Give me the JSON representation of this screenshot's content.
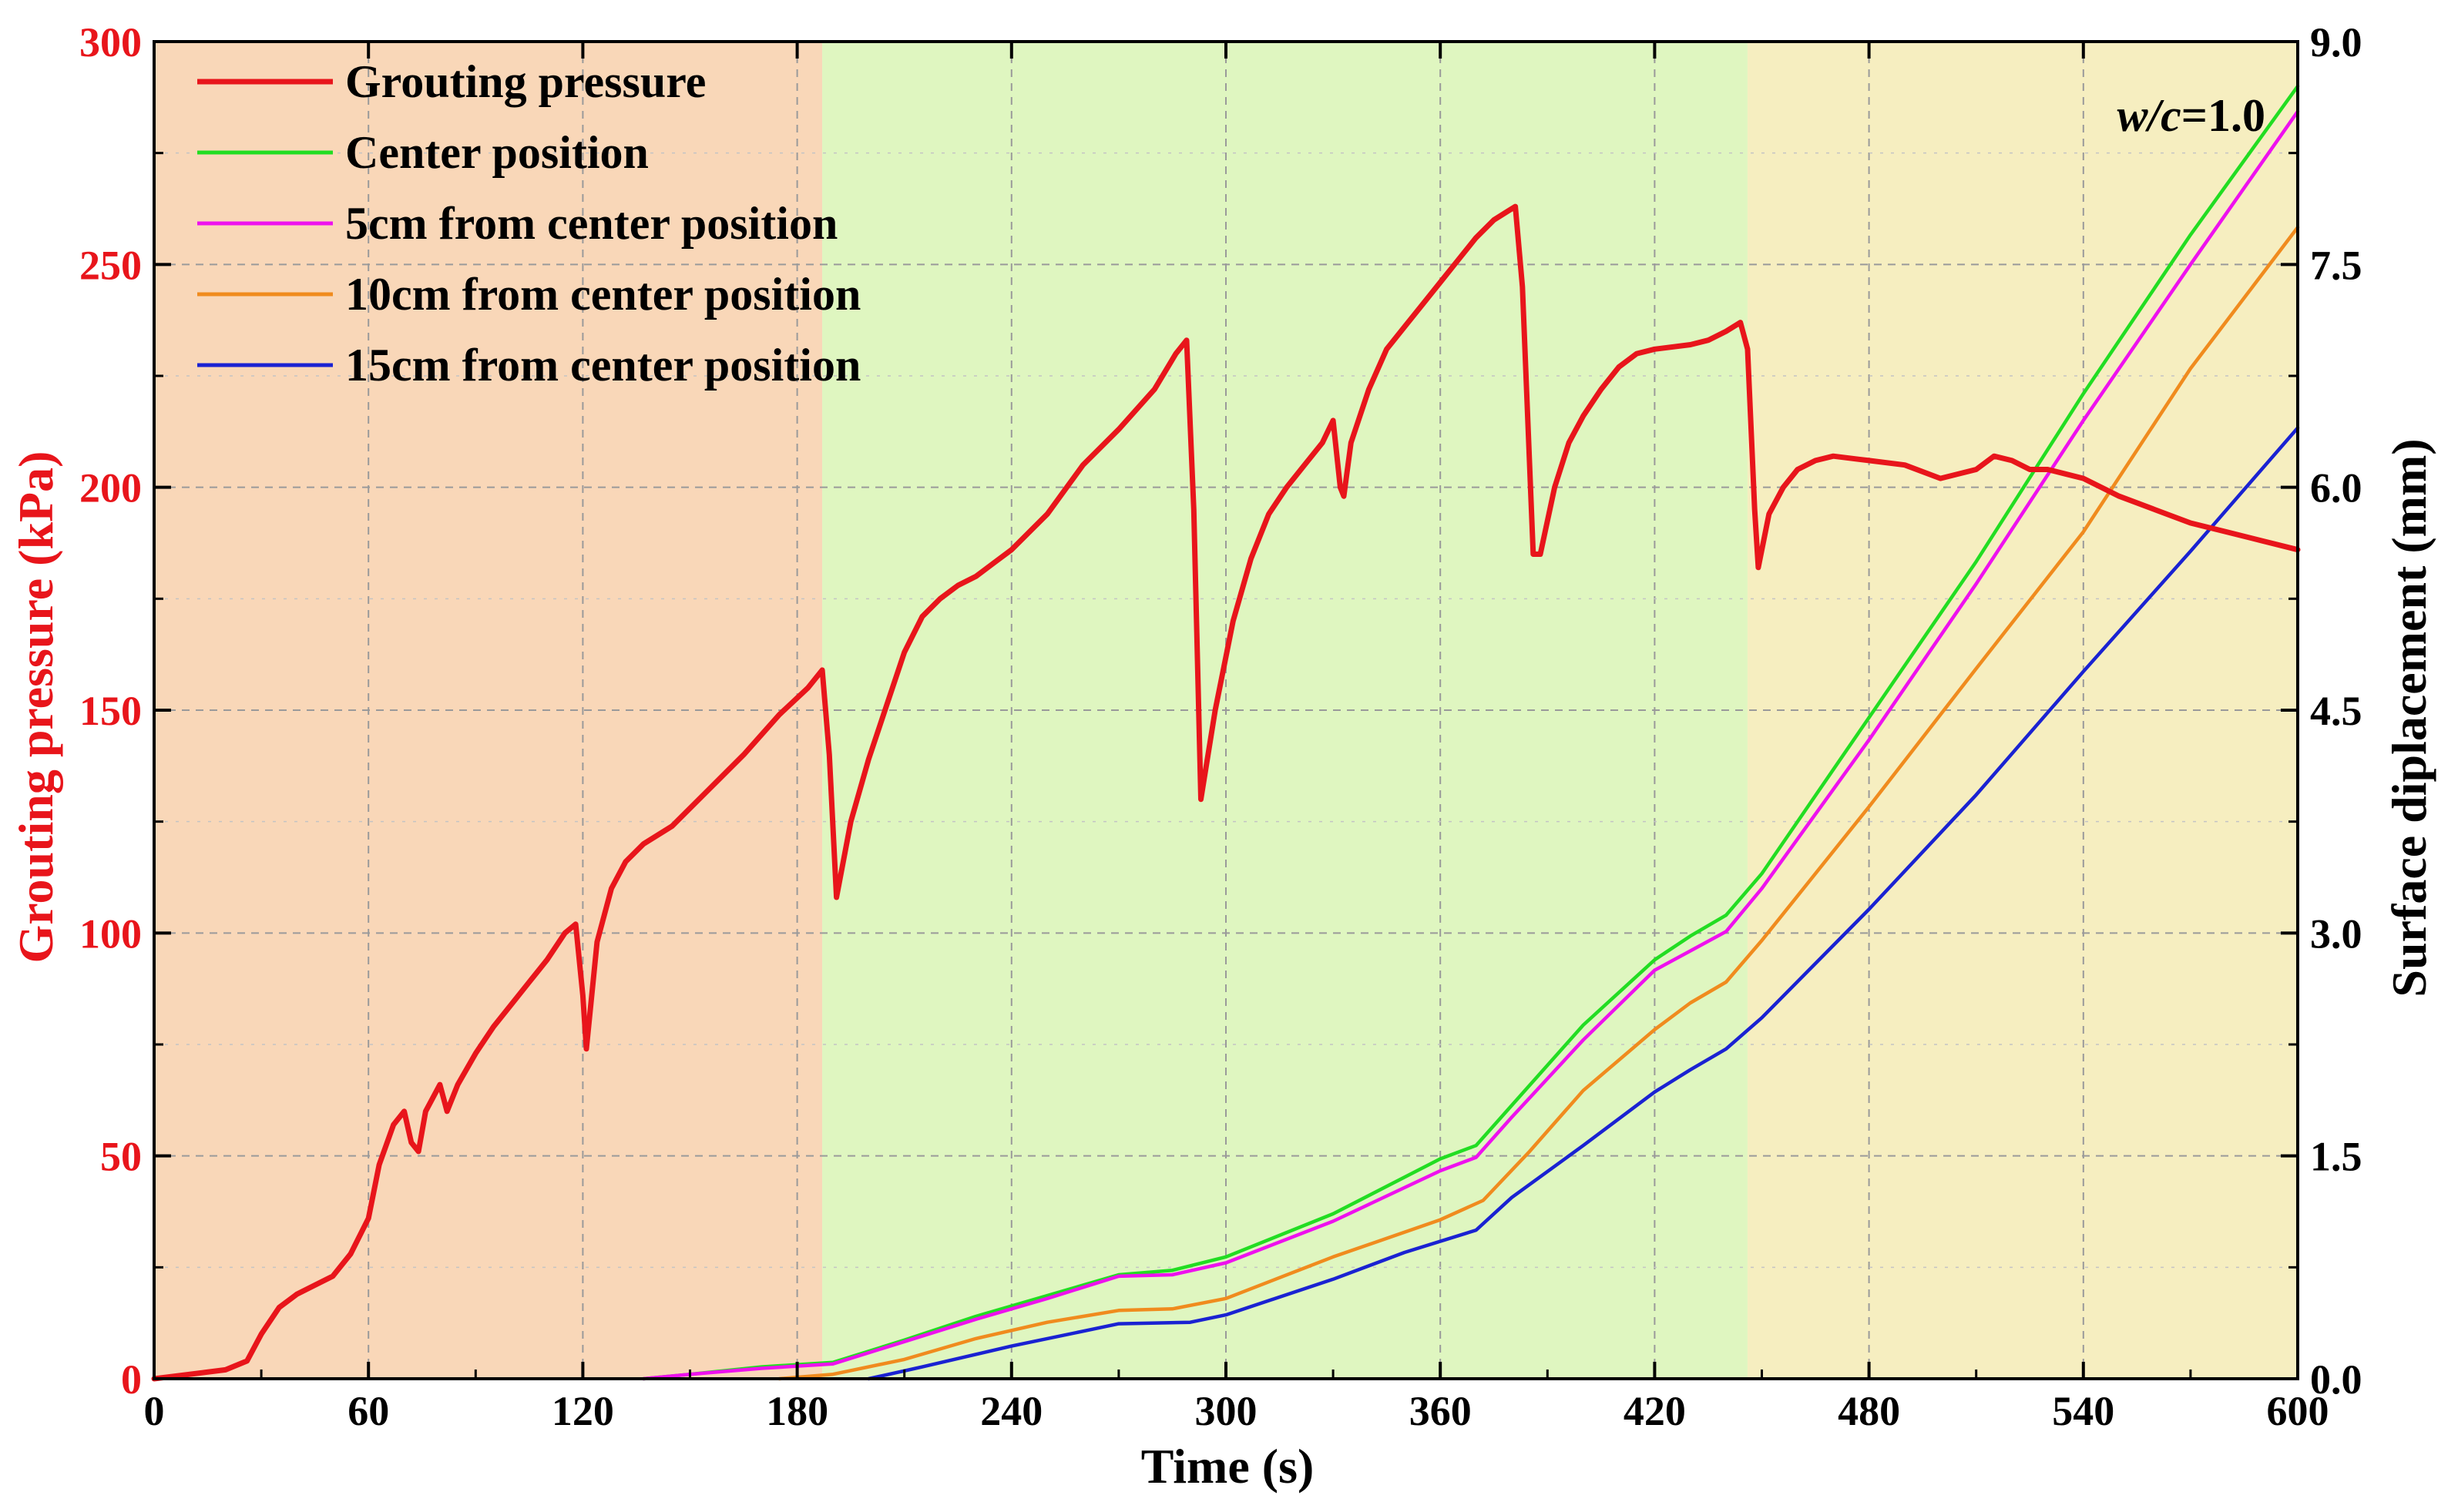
{
  "colors": {
    "pressure": "#e8151b",
    "center": "#22dd22",
    "cm5": "#ee11ee",
    "cm10": "#f08b1e",
    "cm15": "#1a22d2",
    "stage1_bg": "#f9d7b8",
    "stage2_bg": "#dff6c0",
    "stage3_bg": "#f6eec0",
    "grid": "#9a9a9a",
    "axis": "#000000"
  },
  "chart_data": {
    "type": "line",
    "title": "",
    "annotation": {
      "italic_part": "w/c",
      "rest": "=1.0"
    },
    "xlabel": "Time (s)",
    "ylabel_left": "Grouting pressure (kPa)",
    "ylabel_right": "Surface diplacement (mm)",
    "xlim": [
      0,
      600
    ],
    "ylim_left": [
      0,
      300
    ],
    "ylim_right": [
      0,
      9.0
    ],
    "x_ticks": [
      "0",
      "60",
      "120",
      "180",
      "240",
      "300",
      "360",
      "420",
      "480",
      "540",
      "600"
    ],
    "y_left_ticks": [
      "0",
      "50",
      "100",
      "150",
      "200",
      "250",
      "300"
    ],
    "y_right_ticks": [
      "0.0",
      "1.5",
      "3.0",
      "4.5",
      "6.0",
      "7.5",
      "9.0"
    ],
    "grid": true,
    "legend_position": "top-left",
    "stages": [
      {
        "x_start": 0,
        "x_end": 187,
        "color_key": "stage1_bg"
      },
      {
        "x_start": 187,
        "x_end": 446,
        "color_key": "stage2_bg"
      },
      {
        "x_start": 446,
        "x_end": 600,
        "color_key": "stage3_bg"
      }
    ],
    "series": [
      {
        "name": "Grouting pressure",
        "axis": "left",
        "color_key": "pressure",
        "points": [
          [
            0,
            0
          ],
          [
            10,
            1
          ],
          [
            20,
            2
          ],
          [
            26,
            4
          ],
          [
            30,
            10
          ],
          [
            35,
            16
          ],
          [
            40,
            19
          ],
          [
            45,
            21
          ],
          [
            50,
            23
          ],
          [
            55,
            28
          ],
          [
            60,
            36
          ],
          [
            63,
            48
          ],
          [
            67,
            57
          ],
          [
            70,
            60
          ],
          [
            72,
            53
          ],
          [
            74,
            51
          ],
          [
            76,
            60
          ],
          [
            80,
            66
          ],
          [
            82,
            60
          ],
          [
            85,
            66
          ],
          [
            90,
            73
          ],
          [
            95,
            79
          ],
          [
            100,
            84
          ],
          [
            105,
            89
          ],
          [
            110,
            94
          ],
          [
            115,
            100
          ],
          [
            118,
            102
          ],
          [
            120,
            86
          ],
          [
            121,
            74
          ],
          [
            124,
            98
          ],
          [
            128,
            110
          ],
          [
            132,
            116
          ],
          [
            137,
            120
          ],
          [
            145,
            124
          ],
          [
            155,
            132
          ],
          [
            165,
            140
          ],
          [
            175,
            149
          ],
          [
            183,
            155
          ],
          [
            187,
            159
          ],
          [
            189,
            140
          ],
          [
            191,
            108
          ],
          [
            195,
            125
          ],
          [
            200,
            139
          ],
          [
            205,
            151
          ],
          [
            210,
            163
          ],
          [
            215,
            171
          ],
          [
            220,
            175
          ],
          [
            225,
            178
          ],
          [
            230,
            180
          ],
          [
            235,
            183
          ],
          [
            240,
            186
          ],
          [
            250,
            194
          ],
          [
            260,
            205
          ],
          [
            270,
            213
          ],
          [
            280,
            222
          ],
          [
            286,
            230
          ],
          [
            289,
            233
          ],
          [
            291,
            195
          ],
          [
            293,
            130
          ],
          [
            297,
            150
          ],
          [
            302,
            170
          ],
          [
            307,
            184
          ],
          [
            312,
            194
          ],
          [
            317,
            200
          ],
          [
            322,
            205
          ],
          [
            327,
            210
          ],
          [
            330,
            215
          ],
          [
            332,
            200
          ],
          [
            333,
            198
          ],
          [
            335,
            210
          ],
          [
            340,
            222
          ],
          [
            345,
            231
          ],
          [
            350,
            236
          ],
          [
            355,
            241
          ],
          [
            360,
            246
          ],
          [
            365,
            251
          ],
          [
            370,
            256
          ],
          [
            375,
            260
          ],
          [
            379,
            262
          ],
          [
            381,
            263
          ],
          [
            383,
            245
          ],
          [
            386,
            185
          ],
          [
            388,
            185
          ],
          [
            392,
            200
          ],
          [
            396,
            210
          ],
          [
            400,
            216
          ],
          [
            405,
            222
          ],
          [
            410,
            227
          ],
          [
            415,
            230
          ],
          [
            420,
            231
          ],
          [
            430,
            232
          ],
          [
            435,
            233
          ],
          [
            440,
            235
          ],
          [
            444,
            237
          ],
          [
            446,
            231
          ],
          [
            448,
            195
          ],
          [
            449,
            182
          ],
          [
            452,
            194
          ],
          [
            456,
            200
          ],
          [
            460,
            204
          ],
          [
            465,
            206
          ],
          [
            470,
            207
          ],
          [
            480,
            206
          ],
          [
            490,
            205
          ],
          [
            500,
            202
          ],
          [
            510,
            204
          ],
          [
            515,
            207
          ],
          [
            520,
            206
          ],
          [
            525,
            204
          ],
          [
            530,
            204
          ],
          [
            535,
            203
          ],
          [
            540,
            202
          ],
          [
            550,
            198
          ],
          [
            560,
            195
          ],
          [
            570,
            192
          ],
          [
            580,
            190
          ],
          [
            590,
            188
          ],
          [
            600,
            186
          ]
        ]
      },
      {
        "name": "Center position",
        "axis": "right",
        "color_key": "center",
        "points": [
          [
            137,
            0
          ],
          [
            150,
            0.03
          ],
          [
            170,
            0.08
          ],
          [
            190,
            0.11
          ],
          [
            210,
            0.26
          ],
          [
            230,
            0.42
          ],
          [
            250,
            0.56
          ],
          [
            270,
            0.7
          ],
          [
            285,
            0.73
          ],
          [
            300,
            0.82
          ],
          [
            330,
            1.11
          ],
          [
            360,
            1.48
          ],
          [
            370,
            1.57
          ],
          [
            380,
            1.84
          ],
          [
            400,
            2.38
          ],
          [
            420,
            2.82
          ],
          [
            430,
            2.98
          ],
          [
            440,
            3.12
          ],
          [
            450,
            3.4
          ],
          [
            480,
            4.45
          ],
          [
            510,
            5.5
          ],
          [
            540,
            6.63
          ],
          [
            570,
            7.7
          ],
          [
            600,
            8.7
          ]
        ]
      },
      {
        "name": "5cm from center position",
        "axis": "right",
        "color_key": "cm5",
        "points": [
          [
            137,
            0
          ],
          [
            150,
            0.03
          ],
          [
            170,
            0.07
          ],
          [
            190,
            0.1
          ],
          [
            210,
            0.25
          ],
          [
            230,
            0.4
          ],
          [
            250,
            0.54
          ],
          [
            270,
            0.69
          ],
          [
            285,
            0.7
          ],
          [
            300,
            0.78
          ],
          [
            330,
            1.06
          ],
          [
            360,
            1.4
          ],
          [
            370,
            1.49
          ],
          [
            380,
            1.76
          ],
          [
            400,
            2.28
          ],
          [
            420,
            2.75
          ],
          [
            430,
            2.88
          ],
          [
            440,
            3.01
          ],
          [
            450,
            3.3
          ],
          [
            480,
            4.3
          ],
          [
            510,
            5.35
          ],
          [
            540,
            6.45
          ],
          [
            570,
            7.5
          ],
          [
            600,
            8.53
          ]
        ]
      },
      {
        "name": "10cm from center position",
        "axis": "right",
        "color_key": "cm10",
        "points": [
          [
            175,
            0
          ],
          [
            190,
            0.03
          ],
          [
            210,
            0.13
          ],
          [
            230,
            0.27
          ],
          [
            250,
            0.38
          ],
          [
            270,
            0.46
          ],
          [
            285,
            0.47
          ],
          [
            300,
            0.54
          ],
          [
            330,
            0.82
          ],
          [
            360,
            1.07
          ],
          [
            372,
            1.2
          ],
          [
            385,
            1.53
          ],
          [
            400,
            1.94
          ],
          [
            420,
            2.35
          ],
          [
            430,
            2.53
          ],
          [
            440,
            2.67
          ],
          [
            450,
            2.95
          ],
          [
            480,
            3.85
          ],
          [
            510,
            4.78
          ],
          [
            540,
            5.7
          ],
          [
            570,
            6.8
          ],
          [
            600,
            7.75
          ]
        ]
      },
      {
        "name": "15cm from center position",
        "axis": "right",
        "color_key": "cm15",
        "points": [
          [
            200,
            0
          ],
          [
            215,
            0.08
          ],
          [
            240,
            0.22
          ],
          [
            260,
            0.32
          ],
          [
            270,
            0.37
          ],
          [
            290,
            0.38
          ],
          [
            300,
            0.43
          ],
          [
            330,
            0.67
          ],
          [
            350,
            0.85
          ],
          [
            370,
            1.0
          ],
          [
            380,
            1.22
          ],
          [
            400,
            1.57
          ],
          [
            420,
            1.93
          ],
          [
            430,
            2.08
          ],
          [
            440,
            2.22
          ],
          [
            450,
            2.43
          ],
          [
            480,
            3.16
          ],
          [
            510,
            3.93
          ],
          [
            540,
            4.76
          ],
          [
            570,
            5.57
          ],
          [
            600,
            6.4
          ]
        ]
      }
    ]
  }
}
